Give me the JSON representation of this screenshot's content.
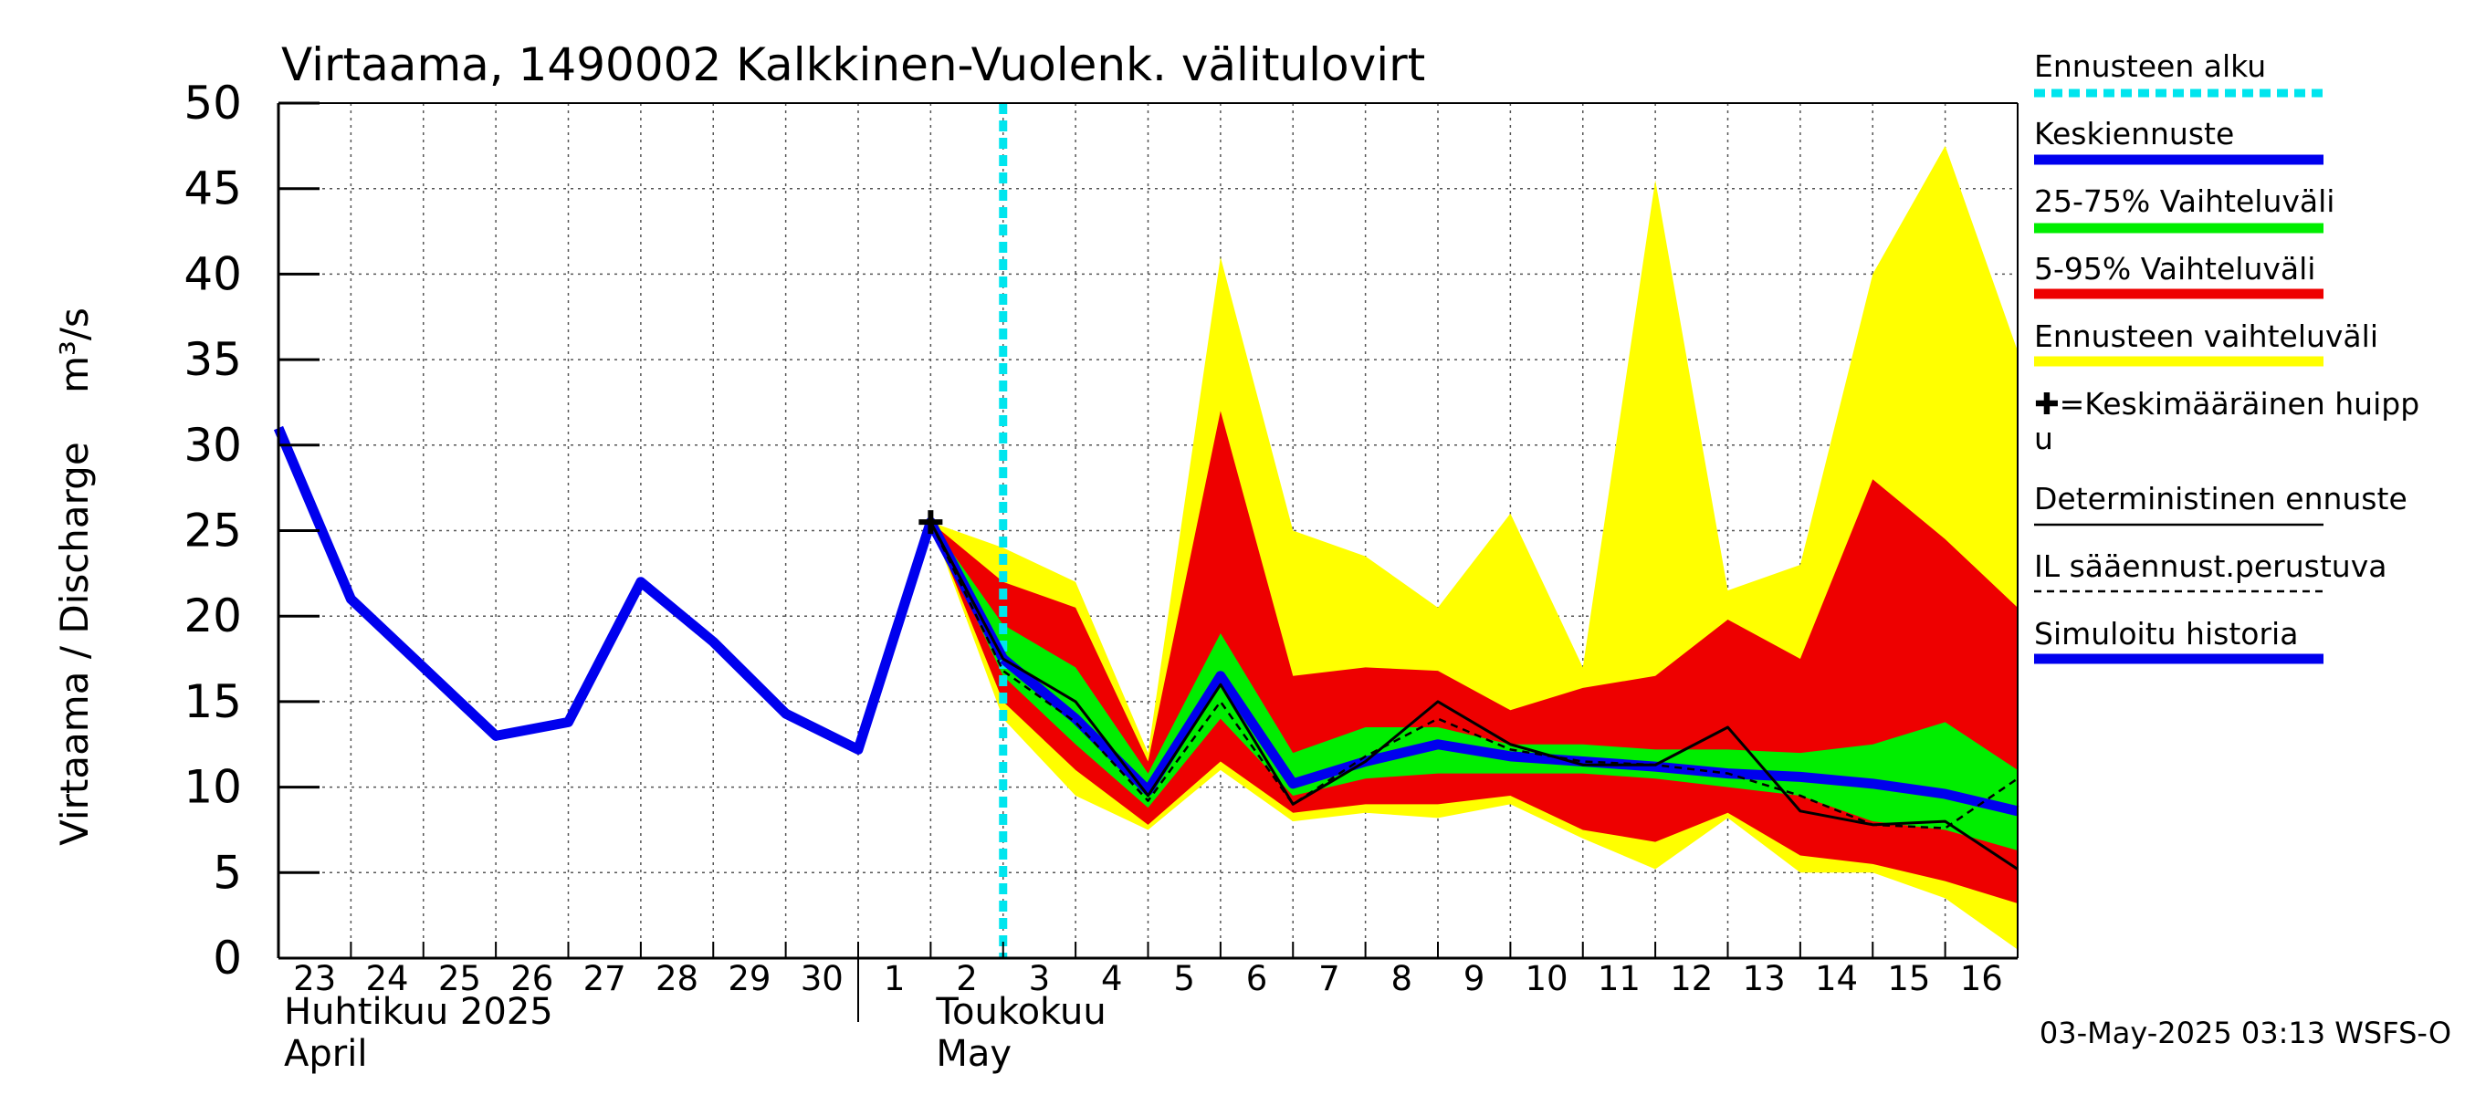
{
  "chart_data": {
    "type": "area",
    "title": "Virtaama, 1490002 Kalkkinen-Vuolenk. välitulovirt",
    "ylabel": "Virtaama / Discharge    m³/s",
    "ylim": [
      0,
      50
    ],
    "yticks": [
      "0",
      "5",
      "10",
      "15",
      "20",
      "25",
      "30",
      "35",
      "40",
      "45",
      "50"
    ],
    "xlim": [
      0,
      24
    ],
    "day_labels": [
      "23",
      "24",
      "25",
      "26",
      "27",
      "28",
      "29",
      "30",
      "1",
      "2",
      "3",
      "4",
      "5",
      "6",
      "7",
      "8",
      "9",
      "10",
      "11",
      "12",
      "13",
      "14",
      "15",
      "16"
    ],
    "month_labels": [
      {
        "fi": "Huhtikuu  2025",
        "en": "April",
        "day_index": 0
      },
      {
        "fi": "Toukokuu",
        "en": "May",
        "day_index": 9
      }
    ],
    "forecast_start_x": 10,
    "grid": true,
    "legend_position": "right",
    "timestamp": "03-May-2025 03:13 WSFS-O",
    "legend": [
      {
        "label": "Ennusteen alku",
        "color": "#00e5ee",
        "style": "dotted"
      },
      {
        "label": "Keskiennuste",
        "color": "#0000ee",
        "style": "thick"
      },
      {
        "label": "25-75% Vaihteluväli",
        "color": "#00ee00",
        "style": "thick"
      },
      {
        "label": "5-95% Vaihteluväli",
        "color": "#ee0000",
        "style": "thick"
      },
      {
        "label": "Ennusteen vaihteluväli",
        "color": "#ffff00",
        "style": "thick"
      },
      {
        "label": "✚=Keskimääräinen huippu",
        "color": "#000000",
        "style": "none"
      },
      {
        "label": "Deterministinen ennuste",
        "color": "#000000",
        "style": "thin"
      },
      {
        "label": "IL sääennust.perustuva",
        "color": "#000000",
        "style": "dashed"
      },
      {
        "label": "Simuloitu historia",
        "color": "#0000ee",
        "style": "thick"
      }
    ],
    "band_x": [
      9,
      10,
      11,
      12,
      13,
      14,
      15,
      16,
      17,
      18,
      19,
      20,
      21,
      22,
      23,
      24
    ],
    "series": [
      {
        "name": "Ennusteen vaihteluväli",
        "role": "band",
        "color": "#ffff00",
        "upper": [
          25.5,
          24,
          22,
          12,
          41,
          25,
          23.5,
          20.5,
          26,
          17,
          45.5,
          21.5,
          23,
          40,
          47.5,
          35.5
        ],
        "lower": [
          25.5,
          14,
          9.5,
          7.5,
          11,
          8,
          8.5,
          8.2,
          9,
          7,
          5.2,
          8.2,
          5,
          5,
          3.5,
          0.5
        ]
      },
      {
        "name": "5-95% Vaihteluväli",
        "role": "band",
        "color": "#ee0000",
        "upper": [
          25.5,
          22,
          20.5,
          11.5,
          32,
          16.5,
          17,
          16.8,
          14.5,
          15.8,
          16.5,
          19.8,
          17.5,
          28,
          24.5,
          20.5
        ],
        "lower": [
          25.5,
          15,
          11,
          7.8,
          11.5,
          8.5,
          9,
          9,
          9.5,
          7.5,
          6.8,
          8.5,
          6,
          5.5,
          4.5,
          3.2
        ]
      },
      {
        "name": "25-75% Vaihteluväli",
        "role": "band",
        "color": "#00ee00",
        "upper": [
          25.5,
          19.5,
          17,
          10.8,
          19,
          12,
          13.5,
          13.5,
          12.5,
          12.5,
          12.2,
          12.2,
          12,
          12.5,
          13.8,
          11
        ],
        "lower": [
          25.5,
          16.5,
          12.5,
          8.8,
          14,
          9.5,
          10.5,
          10.8,
          10.8,
          10.8,
          10.5,
          10,
          9.5,
          8,
          7.5,
          6.3
        ]
      },
      {
        "name": "Simuloitu historia",
        "role": "line",
        "color": "#0000ee",
        "x": [
          0,
          1,
          2,
          3,
          4,
          5,
          6,
          7,
          8,
          9,
          10
        ],
        "y": [
          31,
          21,
          17,
          13,
          13.8,
          22,
          18.5,
          14.3,
          12.2,
          25.5,
          17.5
        ]
      },
      {
        "name": "Keskiennuste",
        "role": "line",
        "color": "#0000ee",
        "x": [
          10,
          11,
          12,
          13,
          14,
          15,
          16,
          17,
          18,
          19,
          20,
          21,
          22,
          23,
          24
        ],
        "y": [
          17.5,
          14,
          9.8,
          16.5,
          10.2,
          11.5,
          12.5,
          11.8,
          11.5,
          11.2,
          10.8,
          10.6,
          10.2,
          9.6,
          8.6
        ]
      },
      {
        "name": "Deterministinen ennuste",
        "role": "line",
        "color": "#000000",
        "x": [
          9,
          10,
          11,
          12,
          13,
          14,
          15,
          16,
          17,
          18,
          19,
          20,
          21,
          22,
          23,
          24
        ],
        "y": [
          25.5,
          17.5,
          15,
          9.5,
          16,
          9,
          11.5,
          15,
          12.5,
          11.3,
          11.3,
          13.5,
          8.6,
          7.8,
          8,
          5.2
        ]
      },
      {
        "name": "IL sääennust.perustuva",
        "role": "line",
        "color": "#000000",
        "x": [
          9,
          10,
          11,
          12,
          13,
          14,
          15,
          16,
          17,
          18,
          19,
          20,
          21,
          22,
          23,
          24
        ],
        "y": [
          25.5,
          16.8,
          13.8,
          9.2,
          15,
          9,
          11.8,
          14,
          12.2,
          11.5,
          11.3,
          10.8,
          9.5,
          7.8,
          7.6,
          10.5
        ]
      }
    ],
    "peak_marker": {
      "x": 9,
      "y": 25.5
    }
  }
}
